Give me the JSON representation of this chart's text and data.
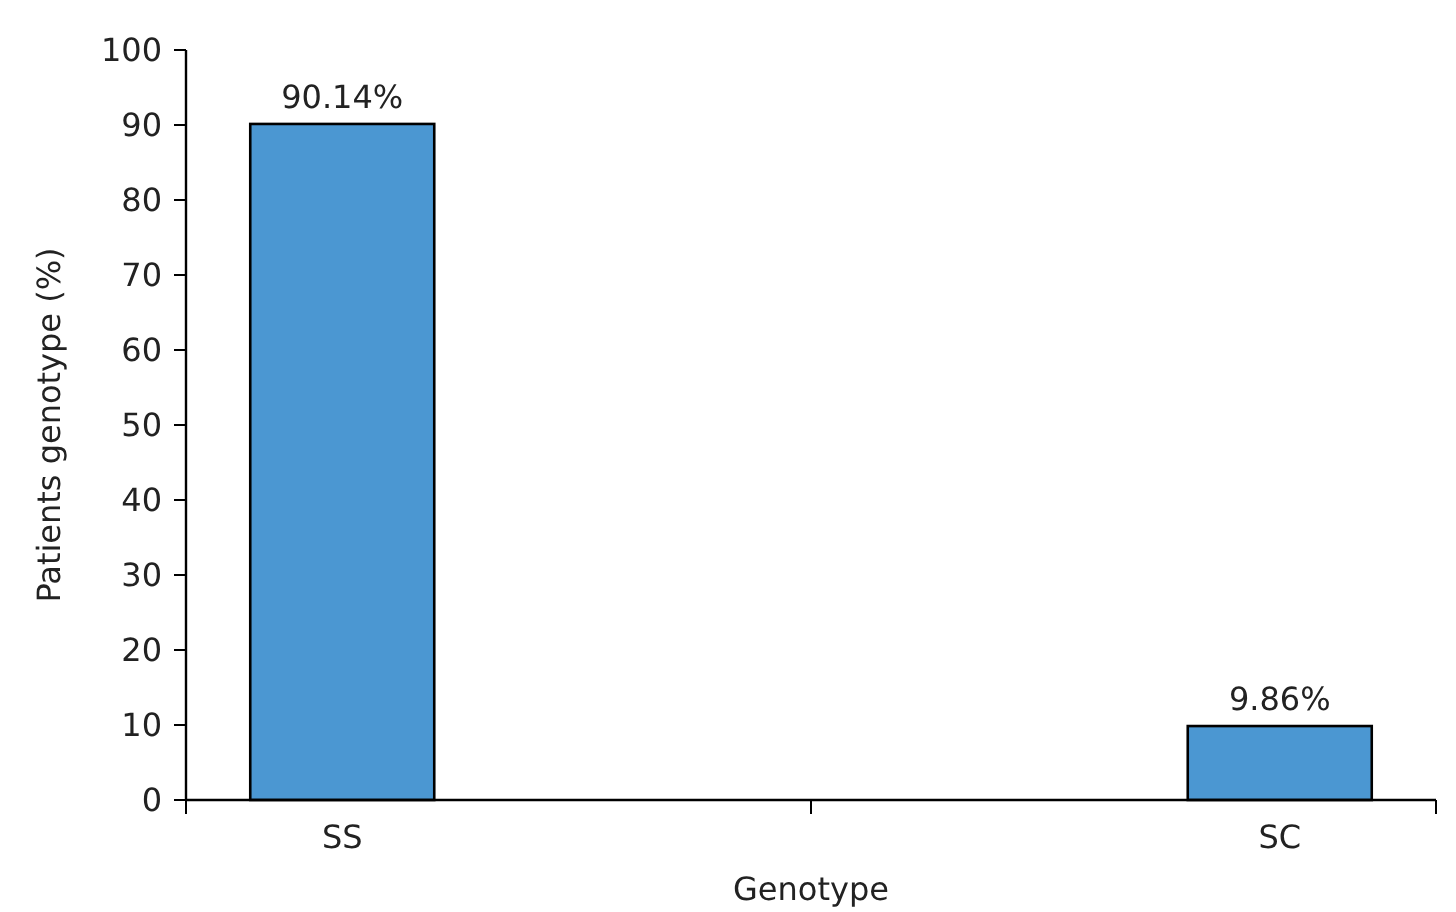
{
  "chart_data": {
    "type": "bar",
    "xlabel": "Genotype",
    "ylabel": "Patients genotype (%)",
    "categories": [
      "SS",
      "SC"
    ],
    "values": [
      90.14,
      9.86
    ],
    "value_labels": [
      "90.14%",
      "9.86%"
    ],
    "color": "#4b97d2",
    "ylim": [
      0,
      100
    ],
    "yticks": [
      0,
      10,
      20,
      30,
      40,
      50,
      60,
      70,
      80,
      90,
      100
    ],
    "grid": false
  }
}
